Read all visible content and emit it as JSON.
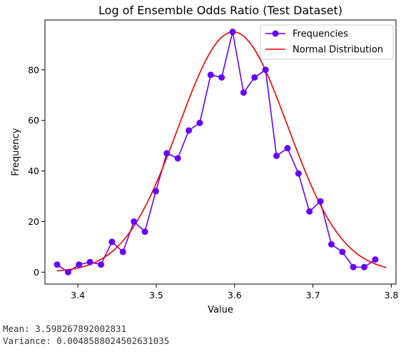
{
  "chart_data": {
    "type": "line",
    "title": "Log of Ensemble Odds Ratio (Test Dataset)",
    "xlabel": "Value",
    "ylabel": "Frequency",
    "xlim": [
      3.358,
      3.806
    ],
    "ylim": [
      -4.7,
      99.7
    ],
    "xticks": [
      3.4,
      3.5,
      3.6,
      3.7,
      3.8
    ],
    "xtick_labels": [
      "3.4",
      "3.5",
      "3.6",
      "3.7",
      "3.8"
    ],
    "yticks": [
      0,
      20,
      40,
      60,
      80
    ],
    "ytick_labels": [
      "0",
      "20",
      "40",
      "60",
      "80"
    ],
    "grid": false,
    "legend_position": "top-right",
    "series": [
      {
        "name": "Frequencies",
        "kind": "line-marker",
        "color": "#6600ff",
        "x": [
          3.3735,
          3.3875,
          3.4015,
          3.4155,
          3.4295,
          3.4435,
          3.4575,
          3.4715,
          3.4855,
          3.4995,
          3.5135,
          3.5275,
          3.5415,
          3.5555,
          3.5695,
          3.5835,
          3.5975,
          3.6115,
          3.6255,
          3.6395,
          3.6535,
          3.6675,
          3.6815,
          3.6955,
          3.7095,
          3.7235,
          3.7375,
          3.7515,
          3.7655,
          3.7795
        ],
        "y": [
          3,
          0,
          3,
          4,
          3,
          12,
          8,
          20,
          16,
          32,
          47,
          45,
          56,
          59,
          78,
          77,
          95,
          71,
          77,
          80,
          46,
          49,
          39,
          24,
          28,
          11,
          8,
          2,
          2,
          5
        ]
      },
      {
        "name": "Normal Distribution",
        "kind": "curve",
        "color": "#ee0000",
        "mean": 3.598267892002831,
        "variance": 0.004858802450263103,
        "peak": 95,
        "x_range": [
          3.3735,
          3.7935
        ]
      }
    ]
  },
  "stats": {
    "mean_line": "Mean: 3.598267892002831",
    "variance_line": "Variance: 0.0048588024502631035"
  }
}
